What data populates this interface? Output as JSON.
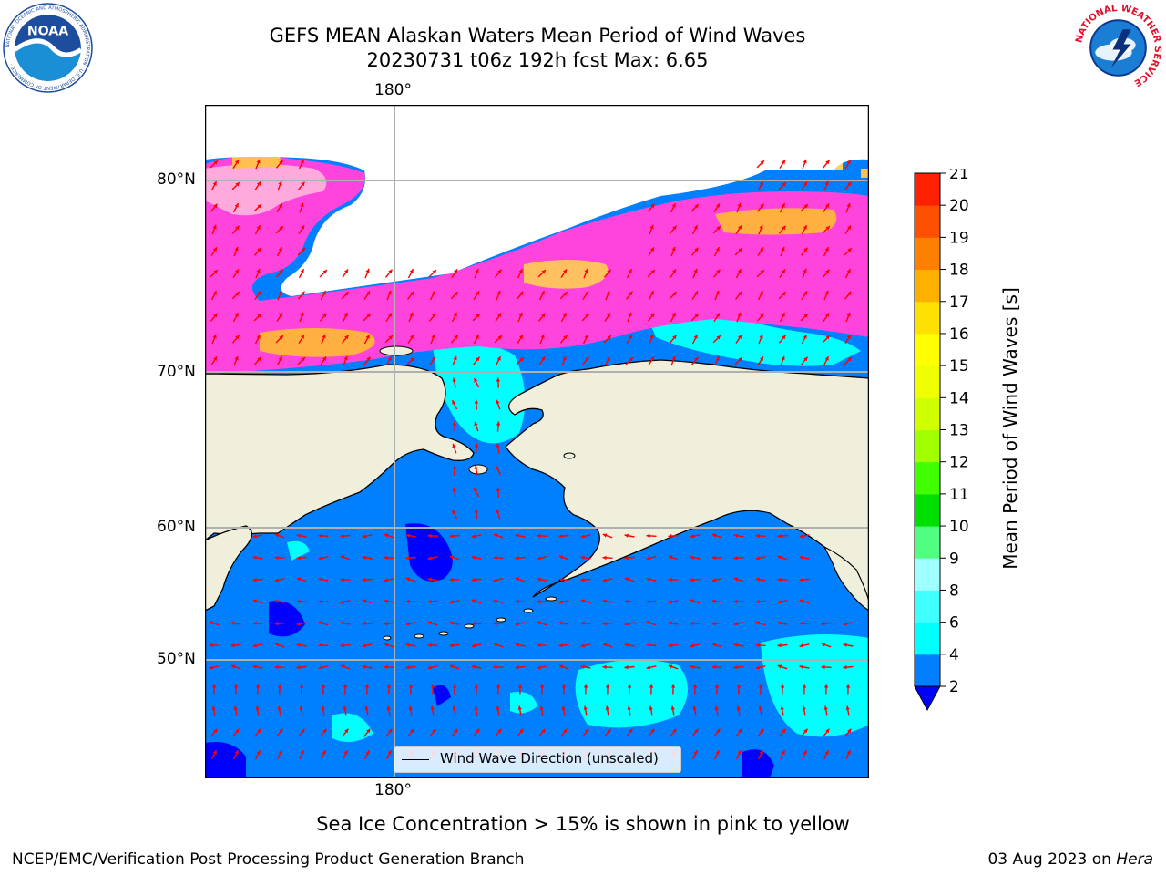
{
  "title_line1": "GEFS MEAN Alaskan Waters Mean Period of Wind Waves",
  "title_line2": "20230731 t06z 192h fcst   Max: 6.65",
  "map": {
    "lon_label_top": "180°",
    "lon_label_bottom": "180°",
    "lat_labels": [
      {
        "text": "80°N",
        "lat": 80
      },
      {
        "text": "70°N",
        "lat": 70
      },
      {
        "text": "60°N",
        "lat": 60
      },
      {
        "text": "50°N",
        "lat": 50
      }
    ],
    "land_color": "#efefdc",
    "ocean_base_color": "#0080ff",
    "arrow_color": "#ff0000"
  },
  "legend": {
    "label": "Wind Wave Direction (unscaled)"
  },
  "colorbar": {
    "label": "Mean Period of Wind Waves [s]",
    "ticks": [
      "2",
      "4",
      "6",
      "8",
      "9",
      "10",
      "11",
      "12",
      "13",
      "14",
      "15",
      "16",
      "17",
      "18",
      "19",
      "20",
      "21"
    ],
    "colors": [
      "#0080ff",
      "#00ffff",
      "#40ffff",
      "#a0ffff",
      "#50ff80",
      "#00e000",
      "#40ff00",
      "#a0ff00",
      "#d0ff00",
      "#f0ff00",
      "#ffff00",
      "#ffe000",
      "#ffb000",
      "#ff8000",
      "#ff5000",
      "#ff2000"
    ],
    "under_color": "#0000ff"
  },
  "subtitle": "Sea Ice Concentration > 15% is shown in pink to yellow",
  "footer_left": "NCEP/EMC/Verification Post Processing Product Generation Branch",
  "footer_right_date": "03 Aug 2023 on ",
  "footer_right_host": "Hera",
  "logos": {
    "noaa_text": "NOAA",
    "noaa_ring": "NATIONAL OCEANIC AND ATMOSPHERIC ADMINISTRATION · U.S. DEPARTMENT OF COMMERCE ·",
    "nws_ring": "NATIONAL WEATHER SERVICE"
  }
}
